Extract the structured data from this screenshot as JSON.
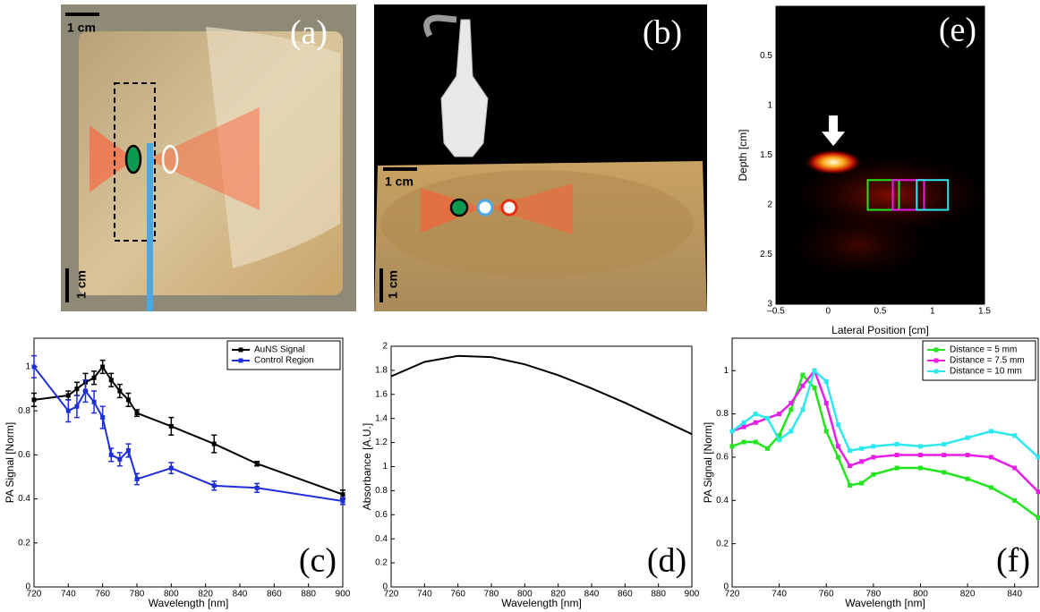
{
  "photos": [
    {
      "panel": "(a)",
      "scale_labels": [
        "1 cm",
        "1 cm"
      ]
    },
    {
      "panel": "(b)",
      "scale_labels": [
        "1 cm",
        "1 cm"
      ]
    }
  ],
  "chart_data": [
    {
      "type": "heatmap",
      "panel": "(e)",
      "xlabel": "Lateral Position [cm]",
      "ylabel": "Depth [cm]",
      "xlim": [
        -0.5,
        1.5
      ],
      "xticks": [
        {
          "value": -0.5,
          "label": "–0.5"
        },
        0,
        0.5,
        1,
        1.5
      ],
      "ylim": [
        0,
        3
      ],
      "yticks": [
        0.5,
        1,
        1.5,
        2,
        2.5,
        3
      ],
      "y_inverted": true
    },
    {
      "type": "line",
      "panel": "(c)",
      "xlabel": "Wavelength [nm]",
      "ylabel": "PA Signal [Norm]",
      "xlim": [
        720,
        900
      ],
      "xticks": [
        720,
        740,
        760,
        780,
        800,
        820,
        840,
        860,
        880,
        900
      ],
      "ylim": [
        0,
        1.13
      ],
      "yticks": [
        0,
        0.2,
        0.4,
        0.6,
        0.8,
        1
      ],
      "legend": "upper right",
      "series": [
        {
          "name": "AuNS Signal",
          "color": "#000000",
          "x": [
            720,
            740,
            745,
            750,
            755,
            760,
            765,
            770,
            775,
            780,
            800,
            825,
            850,
            900
          ],
          "values": [
            0.85,
            0.87,
            0.9,
            0.93,
            0.95,
            1.0,
            0.94,
            0.89,
            0.85,
            0.79,
            0.73,
            0.65,
            0.56,
            0.42
          ],
          "errors": [
            0.03,
            0.02,
            0.03,
            0.04,
            0.03,
            0.03,
            0.03,
            0.03,
            0.03,
            0.015,
            0.04,
            0.04,
            0.01,
            0.02
          ]
        },
        {
          "name": "Control Region",
          "color": "#1f2fd8",
          "x": [
            720,
            740,
            745,
            750,
            755,
            760,
            765,
            770,
            775,
            780,
            800,
            825,
            850,
            900
          ],
          "values": [
            1.0,
            0.8,
            0.82,
            0.89,
            0.84,
            0.77,
            0.6,
            0.58,
            0.62,
            0.49,
            0.54,
            0.46,
            0.45,
            0.39
          ],
          "errors": [
            0.05,
            0.05,
            0.05,
            0.05,
            0.05,
            0.05,
            0.03,
            0.03,
            0.03,
            0.025,
            0.025,
            0.02,
            0.02,
            0.015
          ]
        }
      ]
    },
    {
      "type": "line",
      "panel": "(d)",
      "xlabel": "Wavelength [nm]",
      "ylabel": "Absorbance [A.U.]",
      "xlim": [
        720,
        900
      ],
      "xticks": [
        720,
        740,
        760,
        780,
        800,
        820,
        840,
        860,
        880,
        900
      ],
      "ylim": [
        0,
        2
      ],
      "yticks": [
        0,
        0.2,
        0.4,
        0.6,
        0.8,
        1,
        1.2,
        1.4,
        1.6,
        1.8,
        2
      ],
      "series": [
        {
          "color": "#000000",
          "x": [
            720,
            740,
            760,
            780,
            800,
            820,
            840,
            860,
            880,
            900
          ],
          "values": [
            1.75,
            1.87,
            1.92,
            1.91,
            1.85,
            1.76,
            1.65,
            1.53,
            1.4,
            1.27
          ]
        }
      ]
    },
    {
      "type": "line",
      "panel": "(f)",
      "xlabel": "Wavelength [nm]",
      "ylabel": "PA Signal [Norm]",
      "xlim": [
        720,
        850
      ],
      "xticks": [
        720,
        740,
        760,
        780,
        800,
        820,
        840
      ],
      "ylim": [
        0,
        1.15
      ],
      "yticks": [
        0,
        0.2,
        0.4,
        0.6,
        0.8,
        1
      ],
      "legend": "upper right",
      "series": [
        {
          "name": "Distance = 5 mm",
          "color": "#22e51e",
          "x": [
            720,
            725,
            730,
            735,
            740,
            745,
            750,
            755,
            760,
            765,
            770,
            775,
            780,
            790,
            800,
            810,
            820,
            830,
            840,
            850
          ],
          "values": [
            0.65,
            0.67,
            0.67,
            0.64,
            0.7,
            0.82,
            0.98,
            0.92,
            0.72,
            0.6,
            0.47,
            0.48,
            0.52,
            0.55,
            0.55,
            0.53,
            0.5,
            0.46,
            0.4,
            0.32
          ]
        },
        {
          "name": "Distance = 7.5 mm",
          "color": "#e81ee8",
          "x": [
            720,
            725,
            730,
            735,
            740,
            745,
            750,
            755,
            760,
            765,
            770,
            775,
            780,
            790,
            800,
            810,
            820,
            830,
            840,
            850
          ],
          "values": [
            0.72,
            0.74,
            0.76,
            0.78,
            0.8,
            0.85,
            0.93,
            1.0,
            0.85,
            0.65,
            0.56,
            0.58,
            0.6,
            0.61,
            0.61,
            0.61,
            0.61,
            0.6,
            0.55,
            0.44
          ]
        },
        {
          "name": "Distance = 10 mm",
          "color": "#2ee8ef",
          "x": [
            720,
            725,
            730,
            735,
            740,
            745,
            750,
            755,
            760,
            765,
            770,
            775,
            780,
            790,
            800,
            810,
            820,
            830,
            840,
            850
          ],
          "values": [
            0.72,
            0.76,
            0.8,
            0.78,
            0.68,
            0.72,
            0.82,
            1.0,
            0.95,
            0.75,
            0.63,
            0.64,
            0.65,
            0.66,
            0.65,
            0.66,
            0.69,
            0.72,
            0.7,
            0.6
          ]
        }
      ]
    }
  ]
}
